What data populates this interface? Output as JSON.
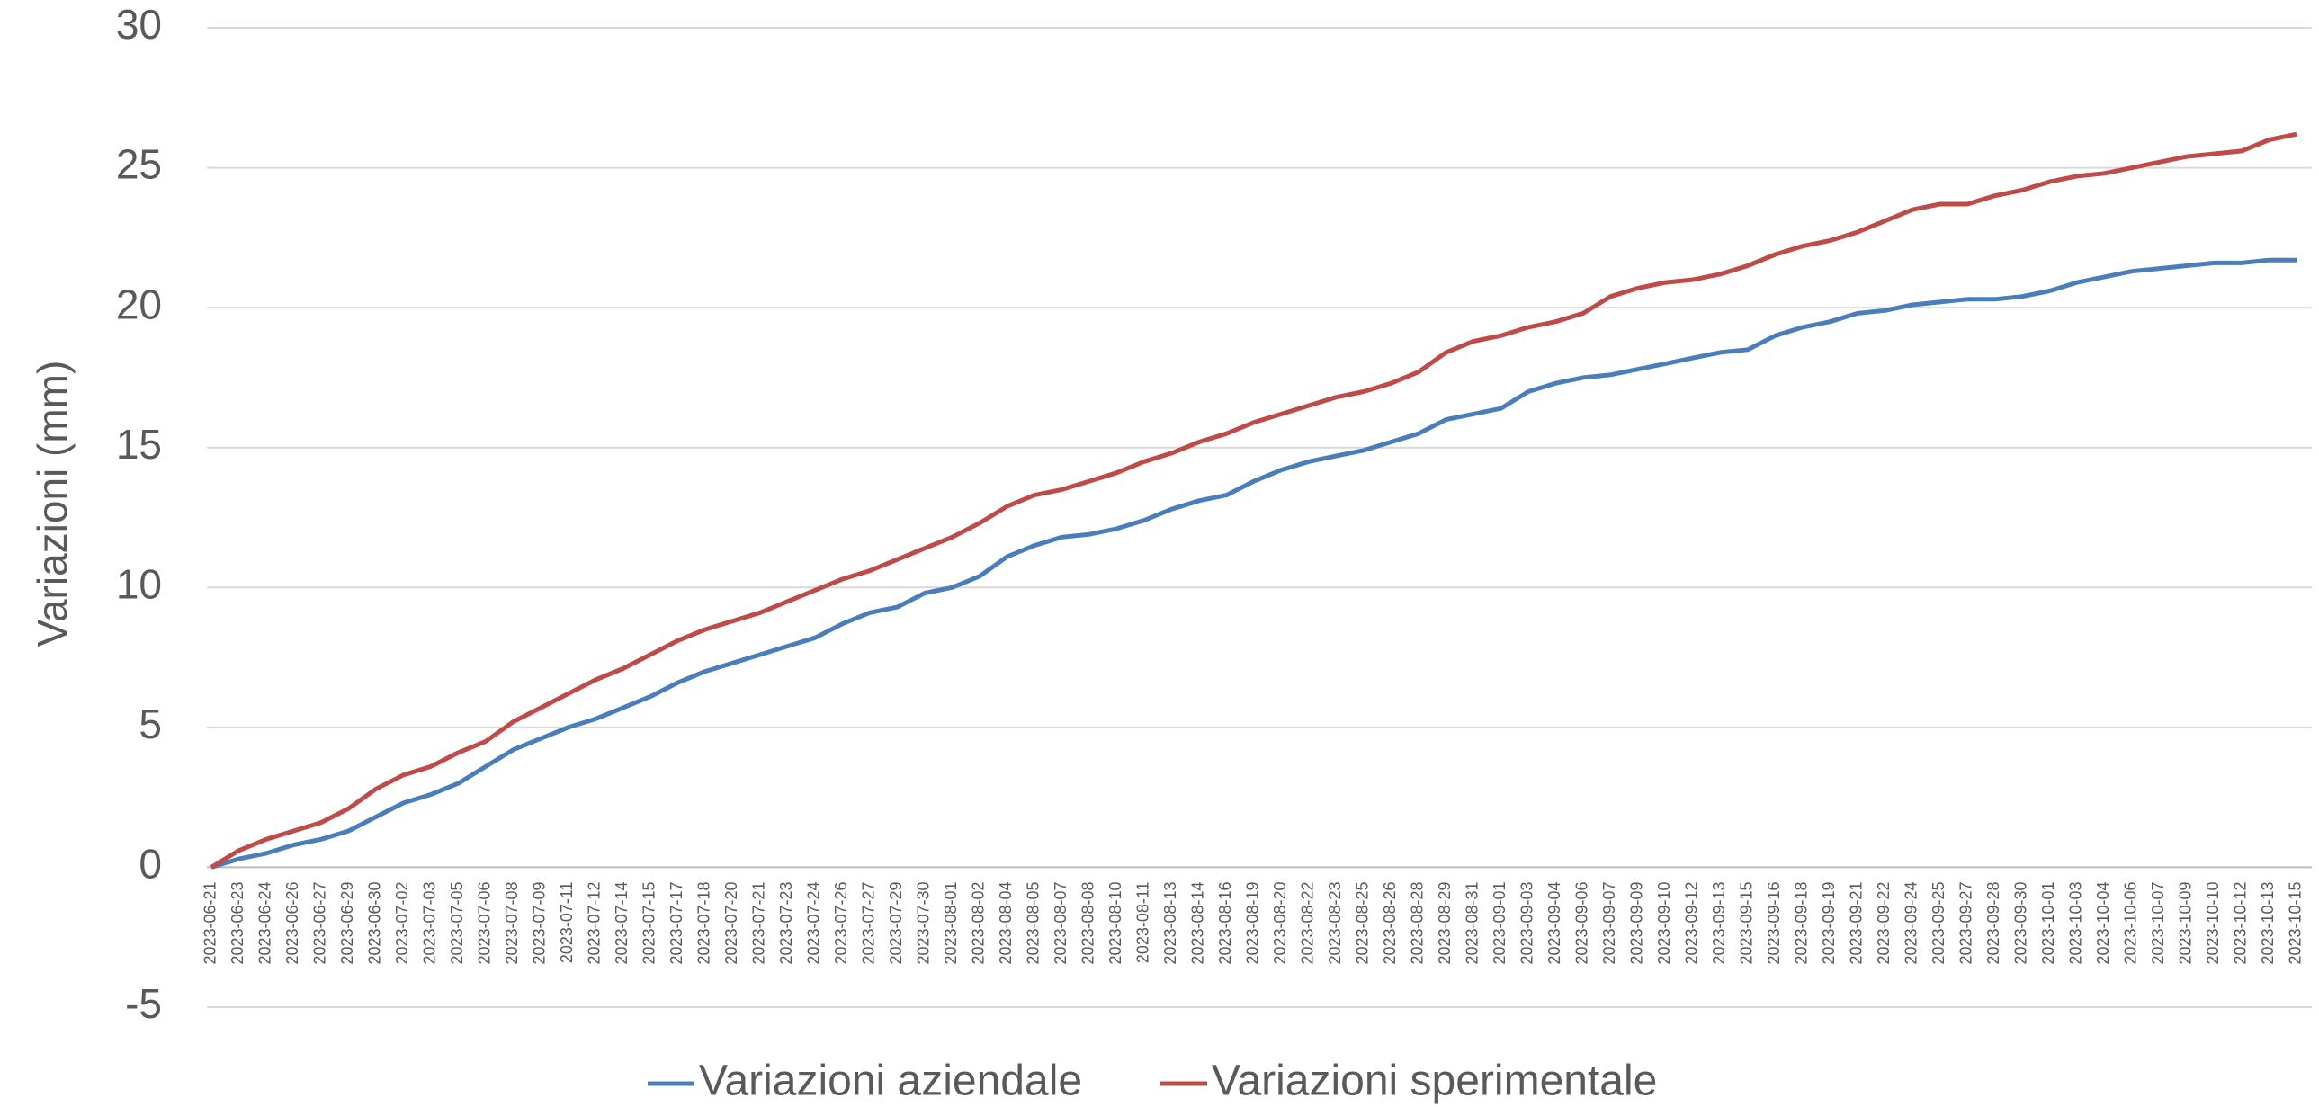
{
  "chart_data": {
    "type": "line",
    "y_label": "Variazioni (mm)",
    "categories": [
      "2023-06-21",
      "2023-06-23",
      "2023-06-24",
      "2023-06-26",
      "2023-06-27",
      "2023-06-29",
      "2023-06-30",
      "2023-07-02",
      "2023-07-03",
      "2023-07-05",
      "2023-07-06",
      "2023-07-08",
      "2023-07-09",
      "2023-07-11",
      "2023-07-12",
      "2023-07-14",
      "2023-07-15",
      "2023-07-17",
      "2023-07-18",
      "2023-07-20",
      "2023-07-21",
      "2023-07-23",
      "2023-07-24",
      "2023-07-26",
      "2023-07-27",
      "2023-07-29",
      "2023-07-30",
      "2023-08-01",
      "2023-08-02",
      "2023-08-04",
      "2023-08-05",
      "2023-08-07",
      "2023-08-08",
      "2023-08-10",
      "2023-08-11",
      "2023-08-13",
      "2023-08-14",
      "2023-08-16",
      "2023-08-19",
      "2023-08-20",
      "2023-08-22",
      "2023-08-23",
      "2023-08-25",
      "2023-08-26",
      "2023-08-28",
      "2023-08-29",
      "2023-08-31",
      "2023-09-01",
      "2023-09-03",
      "2023-09-04",
      "2023-09-06",
      "2023-09-07",
      "2023-09-09",
      "2023-09-10",
      "2023-09-12",
      "2023-09-13",
      "2023-09-15",
      "2023-09-16",
      "2023-09-18",
      "2023-09-19",
      "2023-09-21",
      "2023-09-22",
      "2023-09-24",
      "2023-09-25",
      "2023-09-27",
      "2023-09-28",
      "2023-09-30",
      "2023-10-01",
      "2023-10-03",
      "2023-10-04",
      "2023-10-06",
      "2023-10-07",
      "2023-10-09",
      "2023-10-10",
      "2023-10-12",
      "2023-10-13",
      "2023-10-15"
    ],
    "series": [
      {
        "name": "Variazioni aziendale",
        "color": "#4a7ebb",
        "values": [
          0,
          0.3,
          0.5,
          0.8,
          1.0,
          1.3,
          1.8,
          2.3,
          2.6,
          3.0,
          3.6,
          4.2,
          4.6,
          5.0,
          5.3,
          5.7,
          6.1,
          6.6,
          7.0,
          7.3,
          7.6,
          7.9,
          8.2,
          8.7,
          9.1,
          9.3,
          9.8,
          10.0,
          10.4,
          11.1,
          11.5,
          11.8,
          11.9,
          12.1,
          12.4,
          12.8,
          13.1,
          13.3,
          13.8,
          14.2,
          14.5,
          14.7,
          14.9,
          15.2,
          15.5,
          16.0,
          16.2,
          16.4,
          17.0,
          17.3,
          17.5,
          17.6,
          17.8,
          18.0,
          18.2,
          18.4,
          18.5,
          19.0,
          19.3,
          19.5,
          19.8,
          19.9,
          20.1,
          20.2,
          20.3,
          20.3,
          20.4,
          20.6,
          20.9,
          21.1,
          21.3,
          21.4,
          21.5,
          21.6,
          21.6,
          21.7,
          21.7
        ]
      },
      {
        "name": "Variazioni sperimentale",
        "color": "#be4b48",
        "values": [
          0,
          0.6,
          1.0,
          1.3,
          1.6,
          2.1,
          2.8,
          3.3,
          3.6,
          4.1,
          4.5,
          5.2,
          5.7,
          6.2,
          6.7,
          7.1,
          7.6,
          8.1,
          8.5,
          8.8,
          9.1,
          9.5,
          9.9,
          10.3,
          10.6,
          11.0,
          11.4,
          11.8,
          12.3,
          12.9,
          13.3,
          13.5,
          13.8,
          14.1,
          14.5,
          14.8,
          15.2,
          15.5,
          15.9,
          16.2,
          16.5,
          16.8,
          17.0,
          17.3,
          17.7,
          18.4,
          18.8,
          19.0,
          19.3,
          19.5,
          19.8,
          20.4,
          20.7,
          20.9,
          21.0,
          21.2,
          21.5,
          21.9,
          22.2,
          22.4,
          22.7,
          23.1,
          23.5,
          23.7,
          23.7,
          24.0,
          24.2,
          24.5,
          24.7,
          24.8,
          25.0,
          25.2,
          25.4,
          25.5,
          25.6,
          26.0,
          26.2
        ]
      }
    ],
    "ylim": [
      -5,
      30
    ],
    "yticks": [
      -5,
      0,
      5,
      10,
      15,
      20,
      25,
      30
    ],
    "grid": true,
    "legend": "bottom"
  }
}
